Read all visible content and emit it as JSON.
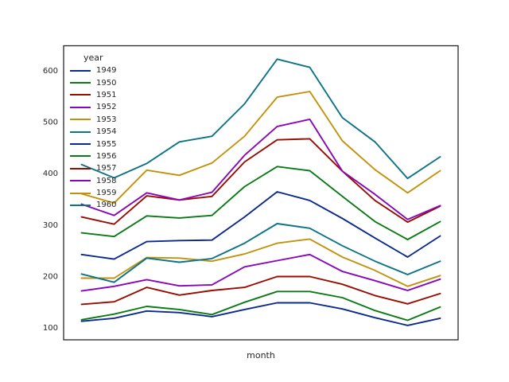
{
  "chart_data": {
    "type": "line",
    "title": "",
    "xlabel": "month",
    "ylabel": "",
    "legend_title": "year",
    "legend_position": "upper left",
    "grid": false,
    "x_points": 12,
    "x_margin": 0.55,
    "x_tick_labels": [],
    "y_ticks": [
      100,
      200,
      300,
      400,
      500,
      600
    ],
    "ylim": [
      76,
      648
    ],
    "axis_color": "#262626",
    "tick_label_color": "#262626",
    "background_color": "#ffffff",
    "line_width": 1.9,
    "series": [
      {
        "name": "1949",
        "color": "#0b2a8e",
        "values": [
          112,
          118,
          132,
          129,
          121,
          135,
          148,
          148,
          136,
          119,
          104,
          118
        ]
      },
      {
        "name": "1950",
        "color": "#0a7a15",
        "values": [
          115,
          126,
          141,
          135,
          125,
          149,
          170,
          170,
          158,
          133,
          114,
          140
        ]
      },
      {
        "name": "1951",
        "color": "#980d02",
        "values": [
          145,
          150,
          178,
          163,
          172,
          178,
          199,
          199,
          184,
          162,
          146,
          166
        ]
      },
      {
        "name": "1952",
        "color": "#8a06b8",
        "values": [
          171,
          180,
          193,
          181,
          183,
          218,
          230,
          242,
          209,
          191,
          172,
          194
        ]
      },
      {
        "name": "1953",
        "color": "#c3920c",
        "values": [
          196,
          196,
          236,
          235,
          229,
          243,
          264,
          272,
          237,
          211,
          180,
          201
        ]
      },
      {
        "name": "1954",
        "color": "#0d7386",
        "values": [
          204,
          188,
          235,
          227,
          234,
          264,
          302,
          293,
          259,
          229,
          203,
          229
        ]
      },
      {
        "name": "1955",
        "color": "#0b2a8e",
        "values": [
          242,
          233,
          267,
          269,
          270,
          315,
          364,
          347,
          312,
          274,
          237,
          278
        ]
      },
      {
        "name": "1956",
        "color": "#0a7a15",
        "values": [
          284,
          277,
          317,
          313,
          318,
          374,
          413,
          405,
          355,
          306,
          271,
          306
        ]
      },
      {
        "name": "1957",
        "color": "#980d02",
        "values": [
          315,
          301,
          356,
          348,
          355,
          422,
          465,
          467,
          404,
          347,
          305,
          336
        ]
      },
      {
        "name": "1958",
        "color": "#8a06b8",
        "values": [
          340,
          318,
          362,
          348,
          363,
          435,
          491,
          505,
          404,
          359,
          310,
          337
        ]
      },
      {
        "name": "1959",
        "color": "#c3920c",
        "values": [
          360,
          342,
          406,
          396,
          420,
          472,
          548,
          559,
          463,
          407,
          362,
          405
        ]
      },
      {
        "name": "1960",
        "color": "#0d7386",
        "values": [
          417,
          391,
          419,
          461,
          472,
          535,
          622,
          606,
          508,
          461,
          390,
          432
        ]
      }
    ]
  }
}
